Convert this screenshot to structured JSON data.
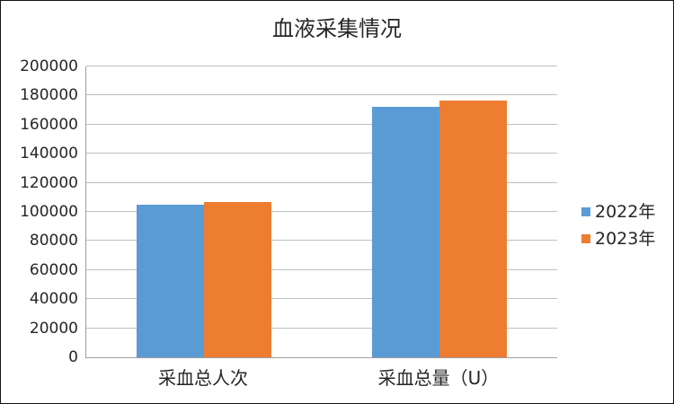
{
  "chart_data": {
    "type": "bar",
    "title": "血液采集情况",
    "categories": [
      "采血总人次",
      "采血总量（U）"
    ],
    "series": [
      {
        "name": "2022年",
        "color": "#5B9BD5",
        "values": [
          105000,
          172000
        ]
      },
      {
        "name": "2023年",
        "color": "#ED7D31",
        "values": [
          107000,
          176500
        ]
      }
    ],
    "xlabel": "",
    "ylabel": "",
    "ylim": [
      0,
      200000
    ],
    "ytick_step": 20000,
    "yticks": [
      0,
      20000,
      40000,
      60000,
      80000,
      100000,
      120000,
      140000,
      160000,
      180000,
      200000
    ],
    "grid": true,
    "legend_position": "right"
  },
  "styles": {
    "background": "#FFFFFF",
    "border_color": "#141414",
    "grid_color": "#BFBFBF",
    "axis_color": "#9E9E9E",
    "text_color": "#262626"
  }
}
